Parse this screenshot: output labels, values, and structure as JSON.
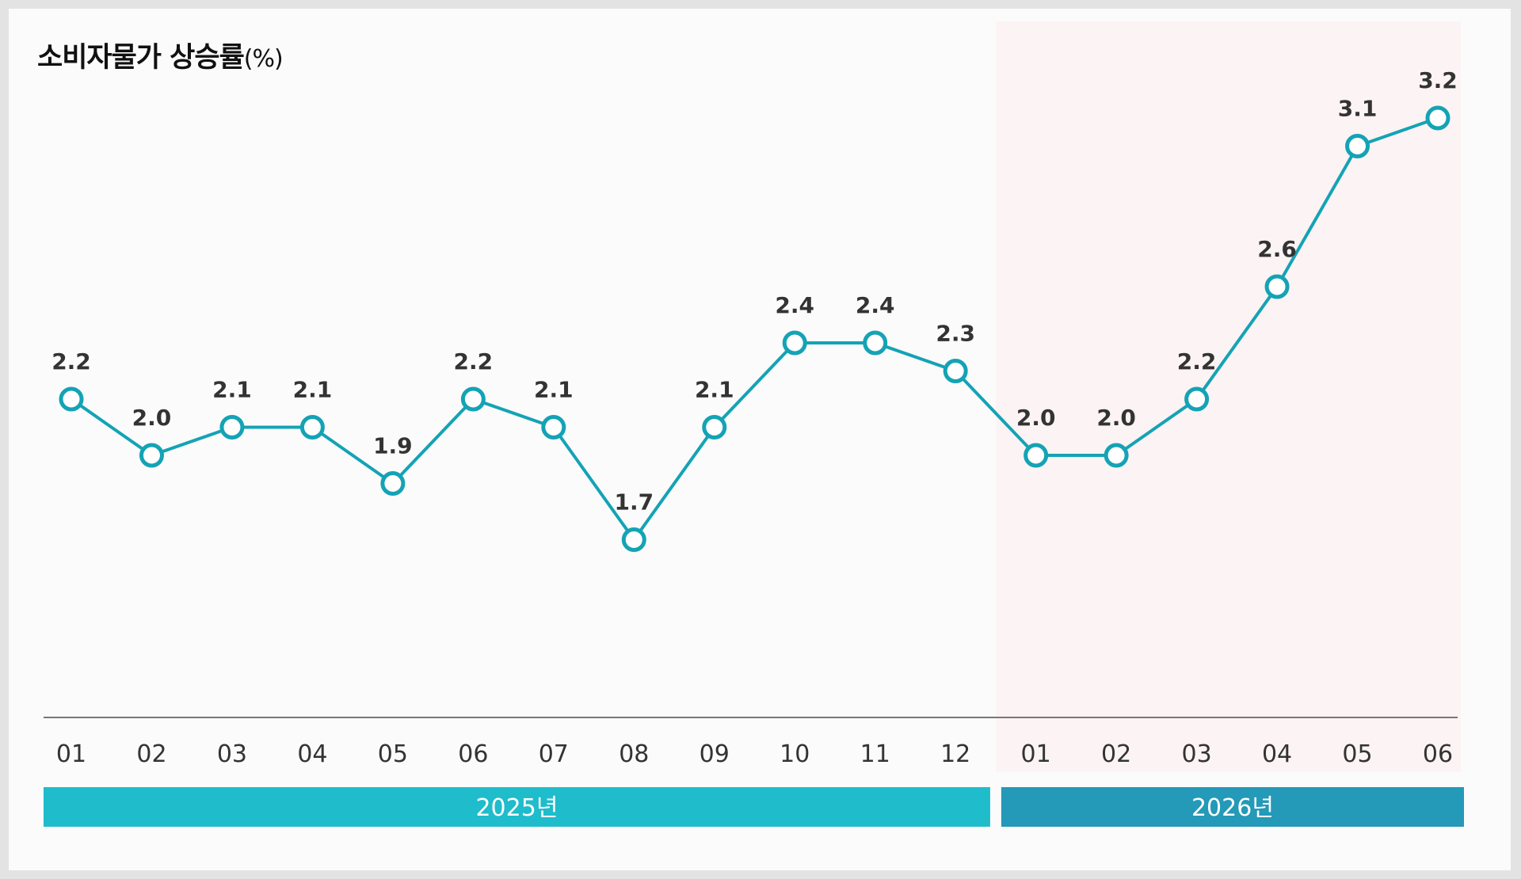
{
  "chart_data": {
    "type": "line",
    "title": "소비자물가 상승률",
    "title_unit": "(%)",
    "categories": [
      "01",
      "02",
      "03",
      "04",
      "05",
      "06",
      "07",
      "08",
      "09",
      "10",
      "11",
      "12",
      "01",
      "02",
      "03",
      "04",
      "05",
      "06"
    ],
    "series": [
      {
        "values": [
          2.2,
          2.0,
          2.1,
          2.1,
          1.9,
          2.2,
          2.1,
          1.7,
          2.1,
          2.4,
          2.4,
          2.3,
          2.0,
          2.0,
          2.2,
          2.6,
          3.1,
          3.2
        ]
      }
    ],
    "value_labels": [
      "2.2",
      "2.0",
      "2.1",
      "2.1",
      "1.9",
      "2.2",
      "2.1",
      "1.7",
      "2.1",
      "2.4",
      "2.4",
      "2.3",
      "2.0",
      "2.0",
      "2.2",
      "2.6",
      "3.1",
      "3.2"
    ],
    "year_groups": [
      {
        "label": "2025년",
        "start_index": 0,
        "end_index": 11,
        "color": "#1fbccb"
      },
      {
        "label": "2026년",
        "start_index": 12,
        "end_index": 17,
        "color": "#2499b8",
        "highlighted": true
      }
    ],
    "highlight_color": "#fcf3f5",
    "line_color": "#14a3b5",
    "grid": false,
    "legend": "none"
  }
}
